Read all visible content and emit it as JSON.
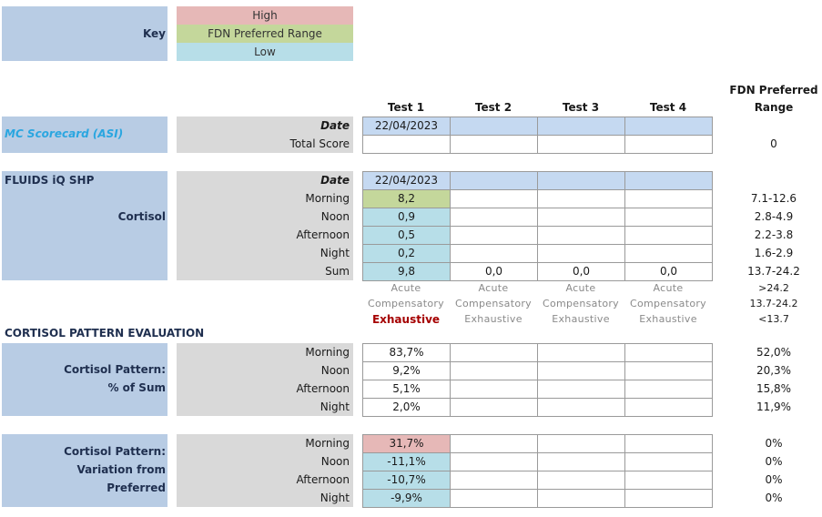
{
  "key": {
    "title": "Key",
    "items": [
      {
        "label": "High",
        "color": "#e6b8b7"
      },
      {
        "label": "FDN Preferred Range",
        "color": "#c4d79b"
      },
      {
        "label": "Low",
        "color": "#b7dee8"
      }
    ]
  },
  "header": {
    "tests": [
      "Test 1",
      "Test 2",
      "Test 3",
      "Test 4"
    ],
    "range_title": [
      "FDN Preferred",
      "Range"
    ]
  },
  "sections": [
    {
      "title": "MC Scorecard (ASI)",
      "date": {
        "label": "Date",
        "values": [
          "22/04/2023",
          null,
          null,
          null
        ]
      },
      "rows": [
        {
          "label": "Total Score",
          "values": [
            null,
            null,
            null,
            null
          ],
          "range": "0",
          "levels": [
            null,
            null,
            null,
            null
          ]
        }
      ]
    },
    {
      "title": "FLUIDS iQ SHP",
      "subtitle": "Cortisol",
      "date": {
        "label": "Date",
        "values": [
          "22/04/2023",
          null,
          null,
          null
        ]
      },
      "rows": [
        {
          "label": "Morning",
          "values": [
            "8,2",
            null,
            null,
            null
          ],
          "range": "7.1-12.6",
          "levels": [
            "FDN Preferred Range",
            null,
            null,
            null
          ]
        },
        {
          "label": "Noon",
          "values": [
            "0,9",
            null,
            null,
            null
          ],
          "range": "2.8-4.9",
          "levels": [
            "Low",
            null,
            null,
            null
          ]
        },
        {
          "label": "Afternoon",
          "values": [
            "0,5",
            null,
            null,
            null
          ],
          "range": "2.2-3.8",
          "levels": [
            "Low",
            null,
            null,
            null
          ]
        },
        {
          "label": "Night",
          "values": [
            "0,2",
            null,
            null,
            null
          ],
          "range": "1.6-2.9",
          "levels": [
            "Low",
            null,
            null,
            null
          ]
        },
        {
          "label": "Sum",
          "values": [
            "9,8",
            "0,0",
            "0,0",
            "0,0"
          ],
          "range": "13.7-24.2",
          "levels": [
            "Low",
            null,
            null,
            null
          ]
        }
      ],
      "interpretation": {
        "levels": [
          "Acute",
          "Compensatory",
          "Exhaustive"
        ],
        "ranges": [
          ">24.2",
          "13.7-24.2",
          "<13.7"
        ],
        "result": [
          "Exhaustive",
          null,
          null,
          null
        ]
      }
    },
    {
      "heading": "CORTISOL PATTERN EVALUATION",
      "title_lines": [
        "Cortisol Pattern:",
        "% of Sum"
      ],
      "rows": [
        {
          "label": "Morning",
          "values": [
            "83,7%",
            null,
            null,
            null
          ],
          "range": "52,0%",
          "levels": [
            null,
            null,
            null,
            null
          ]
        },
        {
          "label": "Noon",
          "values": [
            "9,2%",
            null,
            null,
            null
          ],
          "range": "20,3%",
          "levels": [
            null,
            null,
            null,
            null
          ]
        },
        {
          "label": "Afternoon",
          "values": [
            "5,1%",
            null,
            null,
            null
          ],
          "range": "15,8%",
          "levels": [
            null,
            null,
            null,
            null
          ]
        },
        {
          "label": "Night",
          "values": [
            "2,0%",
            null,
            null,
            null
          ],
          "range": "11,9%",
          "levels": [
            null,
            null,
            null,
            null
          ]
        }
      ]
    },
    {
      "title_lines": [
        "Cortisol Pattern:",
        "Variation from",
        "Preferred"
      ],
      "rows": [
        {
          "label": "Morning",
          "values": [
            "31,7%",
            null,
            null,
            null
          ],
          "range": "0%",
          "levels": [
            "High",
            null,
            null,
            null
          ]
        },
        {
          "label": "Noon",
          "values": [
            "-11,1%",
            null,
            null,
            null
          ],
          "range": "0%",
          "levels": [
            "Low",
            null,
            null,
            null
          ]
        },
        {
          "label": "Afternoon",
          "values": [
            "-10,7%",
            null,
            null,
            null
          ],
          "range": "0%",
          "levels": [
            "Low",
            null,
            null,
            null
          ]
        },
        {
          "label": "Night",
          "values": [
            "-9,9%",
            null,
            null,
            null
          ],
          "range": "0%",
          "levels": [
            "Low",
            null,
            null,
            null
          ]
        }
      ]
    }
  ]
}
